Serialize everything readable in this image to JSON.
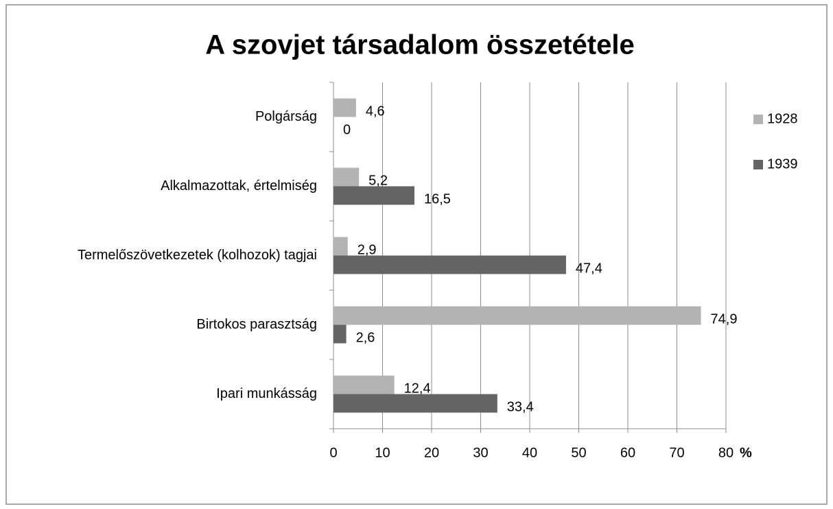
{
  "chart_data": {
    "type": "barh",
    "title": "A szovjet társadalom összetétele",
    "categories": [
      "Polgárság",
      "Alkalmazottak, értelmiség",
      "Termelőszövetkezetek (kolhozok) tagjai",
      "Birtokos parasztság",
      "Ipari munkásság"
    ],
    "series": [
      {
        "name": "1928",
        "color": "#b3b3b3",
        "values": [
          4.6,
          5.2,
          2.9,
          74.9,
          12.4
        ],
        "value_labels": [
          "4,6",
          "5,2",
          "2,9",
          "74,9",
          "12,4"
        ]
      },
      {
        "name": "1939",
        "color": "#646464",
        "values": [
          0,
          16.5,
          47.4,
          2.6,
          33.4
        ],
        "value_labels": [
          "0",
          "16,5",
          "47,4",
          "2,6",
          "33,4"
        ]
      }
    ],
    "x_label": "%",
    "xlim": [
      0,
      80
    ],
    "xticks": [
      0,
      10,
      20,
      30,
      40,
      50,
      60,
      70,
      80
    ],
    "grid": true,
    "legend": "right"
  }
}
